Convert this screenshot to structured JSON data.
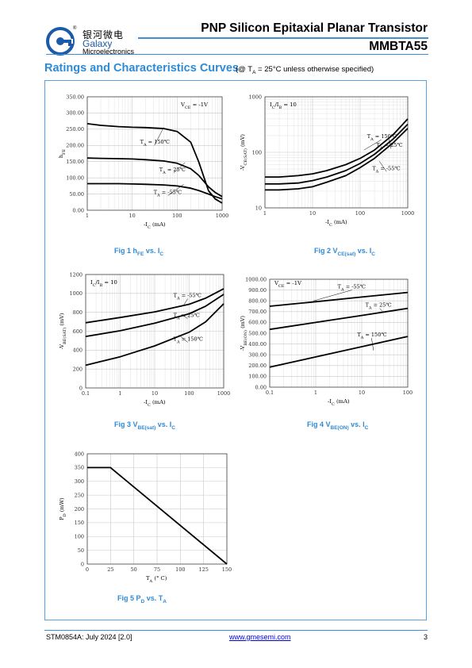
{
  "header": {
    "brand_cn": "银河微电",
    "brand_en": "Galaxy",
    "brand_sub": "Microelectronics",
    "registered": "®",
    "title": "PNP Silicon Epitaxial Planar Transistor",
    "part_number": "MMBTA55"
  },
  "section": {
    "title": "Ratings and Characteristics Curves",
    "condition": "(@ T",
    "condition_sub": "A",
    "condition_rest": " = 25°C unless otherwise specified)"
  },
  "colors": {
    "accent": "#2f8ad6",
    "rule": "#3b8ed8"
  },
  "figures": [
    {
      "caption_main": "Fig 1    h",
      "caption_sub": "FE",
      "caption_tail": " vs. I",
      "caption_sub2": "C"
    },
    {
      "caption_main": "Fig 2    V",
      "caption_sub": "CE(sat)",
      "caption_tail": " vs. I",
      "caption_sub2": "C"
    },
    {
      "caption_main": "Fig 3    V",
      "caption_sub": "BE(sat)",
      "caption_tail": " vs. I",
      "caption_sub2": "C"
    },
    {
      "caption_main": "Fig 4    V",
      "caption_sub": "BE(ON)",
      "caption_tail": " vs. I",
      "caption_sub2": "C"
    },
    {
      "caption_main": "Fig 5    P",
      "caption_sub": "D",
      "caption_tail": " vs. T",
      "caption_sub2": "A"
    }
  ],
  "chart_data": [
    {
      "id": "fig1",
      "type": "line",
      "xscale": "log",
      "xlim": [
        1,
        1000
      ],
      "ylim": [
        0,
        350
      ],
      "xticks": [
        "1",
        "10",
        "100",
        "1000"
      ],
      "yticks": [
        "0.00",
        "50.00",
        "100.00",
        "150.00",
        "200.00",
        "250.00",
        "300.00",
        "350.00"
      ],
      "xlabel": "-I",
      "xlabel_sub": "C",
      "xlabel_unit": " (mA)",
      "ylabel": "h",
      "ylabel_sub": "FE",
      "condition": "V",
      "condition_sub": "CE",
      "condition_rest": " = -1V",
      "series": [
        {
          "name": "T",
          "name_sub": "A",
          "name_rest": " = 150℃",
          "x": [
            1,
            2,
            5,
            10,
            20,
            50,
            100,
            200,
            300,
            500,
            700,
            1000
          ],
          "y": [
            267,
            262,
            258,
            256,
            255,
            252,
            243,
            210,
            150,
            60,
            35,
            22
          ]
        },
        {
          "name": "T",
          "name_sub": "A",
          "name_rest": " = 25℃",
          "x": [
            1,
            2,
            5,
            10,
            20,
            50,
            100,
            200,
            300,
            500,
            700,
            1000
          ],
          "y": [
            161,
            160,
            159,
            158,
            156,
            152,
            145,
            128,
            108,
            72,
            55,
            42
          ]
        },
        {
          "name": "T",
          "name_sub": "A",
          "name_rest": " = -55℃",
          "x": [
            1,
            2,
            5,
            10,
            20,
            50,
            100,
            200,
            300,
            500,
            700,
            1000
          ],
          "y": [
            82,
            82,
            82,
            81,
            80,
            78,
            75,
            68,
            61,
            50,
            42,
            35
          ]
        }
      ]
    },
    {
      "id": "fig2",
      "type": "line",
      "xscale": "log",
      "yscale": "log",
      "xlim": [
        1,
        1000
      ],
      "ylim": [
        10,
        1000
      ],
      "xticks": [
        "1",
        "10",
        "100",
        "1000"
      ],
      "yticks": [
        "10",
        "100",
        "1000"
      ],
      "xlabel": "-I",
      "xlabel_sub": "C",
      "xlabel_unit": " (mA)",
      "ylabel": "-V",
      "ylabel_sub": "CE(SAT)",
      "ylabel_unit": " (mV)",
      "condition": "I",
      "condition_sub": "C",
      "condition_rest": "/I",
      "condition_sub2": "B",
      "condition_tail": " = 10",
      "series": [
        {
          "name": "T",
          "name_sub": "A",
          "name_rest": " = 150℃",
          "x": [
            1,
            2,
            5,
            10,
            20,
            50,
            100,
            200,
            500,
            1000
          ],
          "y": [
            36,
            36,
            38,
            41,
            47,
            60,
            78,
            110,
            210,
            400
          ]
        },
        {
          "name": "T",
          "name_sub": "A",
          "name_rest": " = 25℃",
          "x": [
            1,
            2,
            5,
            10,
            20,
            50,
            100,
            200,
            500,
            1000
          ],
          "y": [
            27,
            27,
            28,
            31,
            36,
            47,
            63,
            92,
            175,
            320
          ]
        },
        {
          "name": "T",
          "name_sub": "A",
          "name_rest": " = -55℃",
          "x": [
            1,
            2,
            5,
            10,
            20,
            50,
            100,
            200,
            500,
            1000
          ],
          "y": [
            21,
            21,
            22,
            24,
            29,
            38,
            53,
            78,
            150,
            270
          ]
        }
      ]
    },
    {
      "id": "fig3",
      "type": "line",
      "xscale": "log",
      "xlim": [
        0.1,
        1000
      ],
      "ylim": [
        0,
        1200
      ],
      "xticks": [
        "0.1",
        "1",
        "10",
        "100",
        "1000"
      ],
      "yticks": [
        "0",
        "200",
        "400",
        "600",
        "800",
        "1000",
        "1200"
      ],
      "xlabel": "-I",
      "xlabel_sub": "C",
      "xlabel_unit": " (mA)",
      "ylabel": "-V",
      "ylabel_sub": "BE(SAT)",
      "ylabel_unit": " (mV)",
      "condition": "I",
      "condition_sub": "C",
      "condition_rest": "/I",
      "condition_sub2": "B",
      "condition_tail": " = 10",
      "series": [
        {
          "name": "T",
          "name_sub": "A",
          "name_rest": " = -55℃",
          "x": [
            0.1,
            1,
            10,
            100,
            300,
            1000
          ],
          "y": [
            690,
            745,
            805,
            885,
            950,
            1050
          ]
        },
        {
          "name": "T",
          "name_sub": "A",
          "name_rest": " = 25℃",
          "x": [
            0.1,
            1,
            10,
            100,
            300,
            1000
          ],
          "y": [
            545,
            605,
            685,
            785,
            865,
            990
          ]
        },
        {
          "name": "T",
          "name_sub": "A",
          "name_rest": " = 150℃",
          "x": [
            0.1,
            1,
            10,
            100,
            300,
            1000
          ],
          "y": [
            240,
            330,
            445,
            590,
            700,
            890
          ]
        }
      ]
    },
    {
      "id": "fig4",
      "type": "line",
      "xscale": "log",
      "xlim": [
        0.1,
        100
      ],
      "ylim": [
        0,
        1000
      ],
      "xticks": [
        "0.1",
        "1",
        "10",
        "100"
      ],
      "yticks": [
        "0.00",
        "100.00",
        "200.00",
        "300.00",
        "400.00",
        "500.00",
        "600.00",
        "700.00",
        "800.00",
        "900.00",
        "1000.00"
      ],
      "xlabel": "-I",
      "xlabel_sub": "C",
      "xlabel_unit": " (mA)",
      "ylabel": "-V",
      "ylabel_sub": "BE(ON)",
      "ylabel_unit": " (mV)",
      "condition": "V",
      "condition_sub": "CE",
      "condition_rest": " = -1V",
      "series": [
        {
          "name": "T",
          "name_sub": "A",
          "name_rest": " = -55℃",
          "x": [
            0.1,
            1,
            10,
            100
          ],
          "y": [
            750,
            792,
            835,
            878
          ]
        },
        {
          "name": "T",
          "name_sub": "A",
          "name_rest": " = 25℃",
          "x": [
            0.1,
            1,
            10,
            100
          ],
          "y": [
            535,
            600,
            665,
            730
          ]
        },
        {
          "name": "T",
          "name_sub": "A",
          "name_rest": " = 150℃",
          "x": [
            0.1,
            1,
            10,
            100
          ],
          "y": [
            185,
            280,
            375,
            470
          ]
        }
      ]
    },
    {
      "id": "fig5",
      "type": "line",
      "xlim": [
        0,
        150
      ],
      "ylim": [
        0,
        400
      ],
      "xticks": [
        "0",
        "25",
        "50",
        "75",
        "100",
        "125",
        "150"
      ],
      "yticks": [
        "0",
        "50",
        "100",
        "150",
        "200",
        "250",
        "300",
        "350",
        "400"
      ],
      "xlabel": "T",
      "xlabel_sub": "A",
      "xlabel_unit": " (° C)",
      "ylabel": "P",
      "ylabel_sub": "D",
      "ylabel_unit": " (mW)",
      "series": [
        {
          "x": [
            0,
            25,
            150
          ],
          "y": [
            350,
            350,
            0
          ]
        }
      ]
    }
  ],
  "footer": {
    "doc_id": "STM0854A: July 2024 [2.0]",
    "website": "www.gmesemi.com",
    "page": "3"
  }
}
